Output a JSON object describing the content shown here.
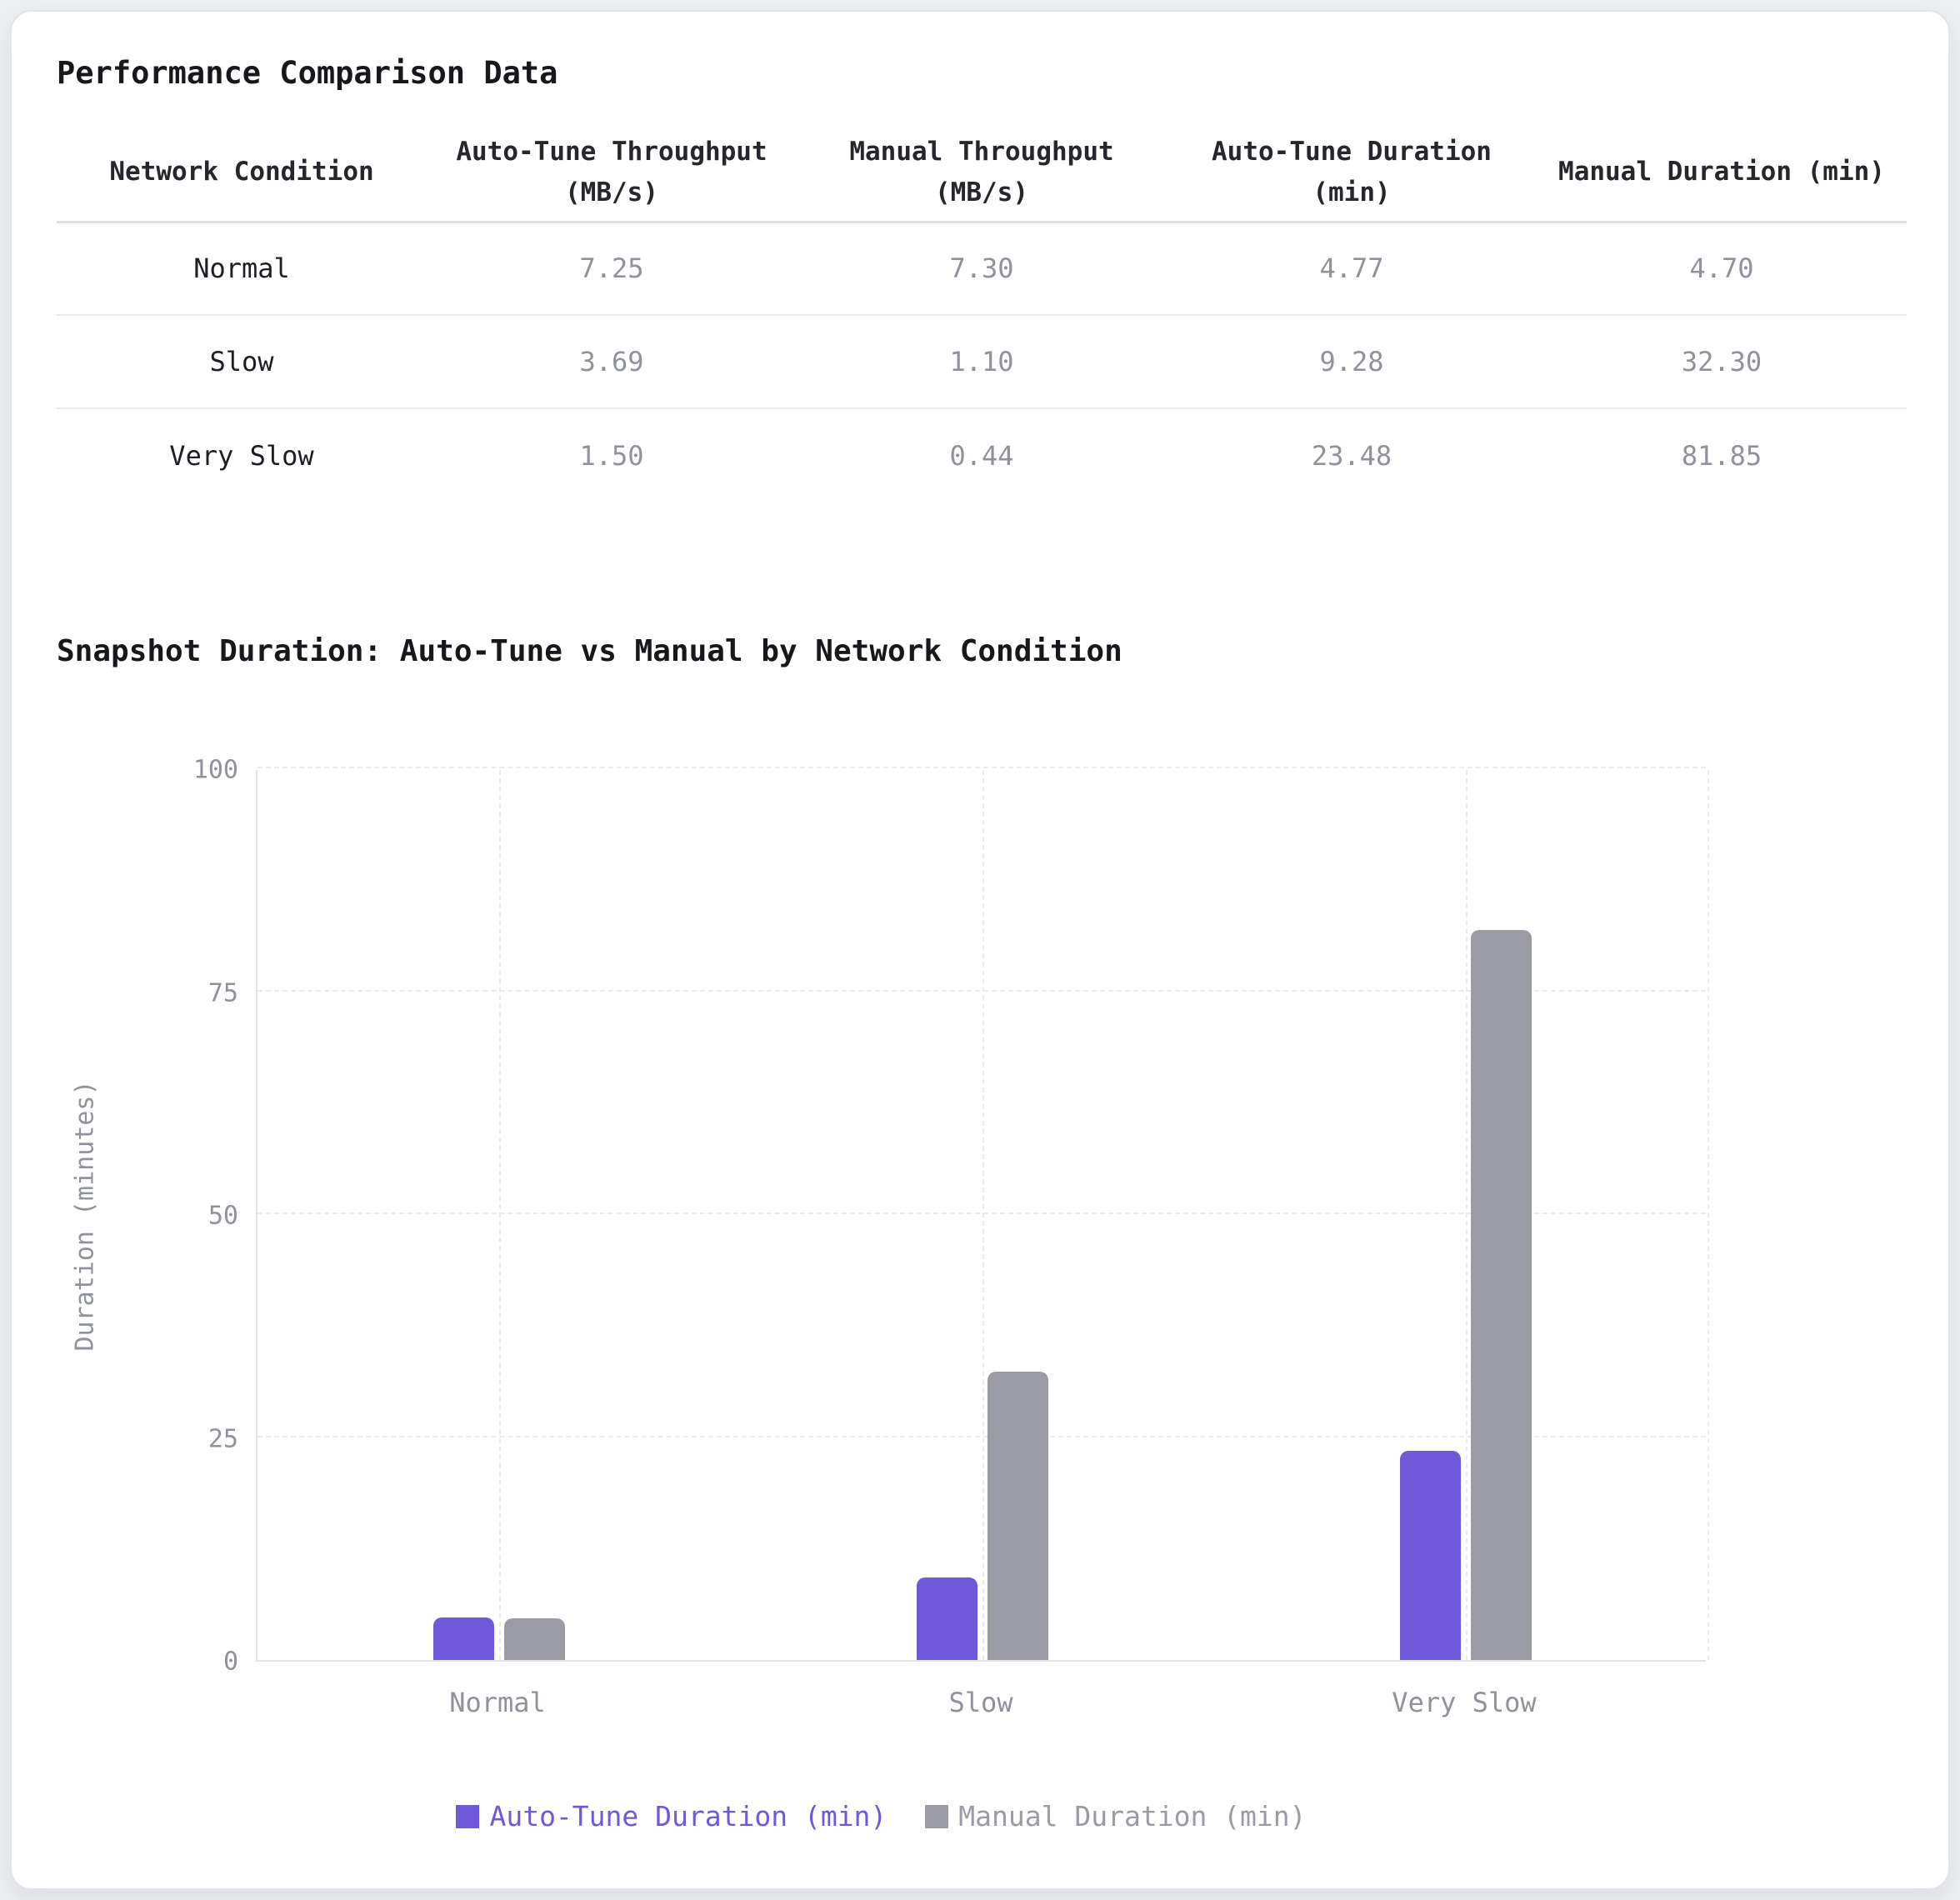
{
  "table": {
    "title": "Performance Comparison Data",
    "columns": [
      "Network Condition",
      "Auto-Tune Throughput (MB/s)",
      "Manual Throughput (MB/s)",
      "Auto-Tune Duration (min)",
      "Manual Duration (min)"
    ],
    "rows": [
      {
        "condition": "Normal",
        "values": [
          "7.25",
          "7.30",
          "4.77",
          "4.70"
        ]
      },
      {
        "condition": "Slow",
        "values": [
          "3.69",
          "1.10",
          "9.28",
          "32.30"
        ]
      },
      {
        "condition": "Very Slow",
        "values": [
          "1.50",
          "0.44",
          "23.48",
          "81.85"
        ]
      }
    ]
  },
  "chart": {
    "title": "Snapshot Duration: Auto-Tune vs Manual by Network Condition"
  },
  "chart_data": {
    "type": "bar",
    "categories": [
      "Normal",
      "Slow",
      "Very Slow"
    ],
    "series": [
      {
        "name": "Auto-Tune Duration (min)",
        "color": "#7058DB",
        "values": [
          4.77,
          9.28,
          23.48
        ]
      },
      {
        "name": "Manual Duration (min)",
        "color": "#9B9BA5",
        "values": [
          4.7,
          32.3,
          81.85
        ]
      }
    ],
    "title": "Snapshot Duration: Auto-Tune vs Manual by Network Condition",
    "xlabel": "",
    "ylabel": "Duration (minutes)",
    "ylim": [
      0,
      100
    ],
    "yticks": [
      0,
      25,
      50,
      75,
      100
    ],
    "grid": "dashed",
    "legend_position": "bottom"
  }
}
